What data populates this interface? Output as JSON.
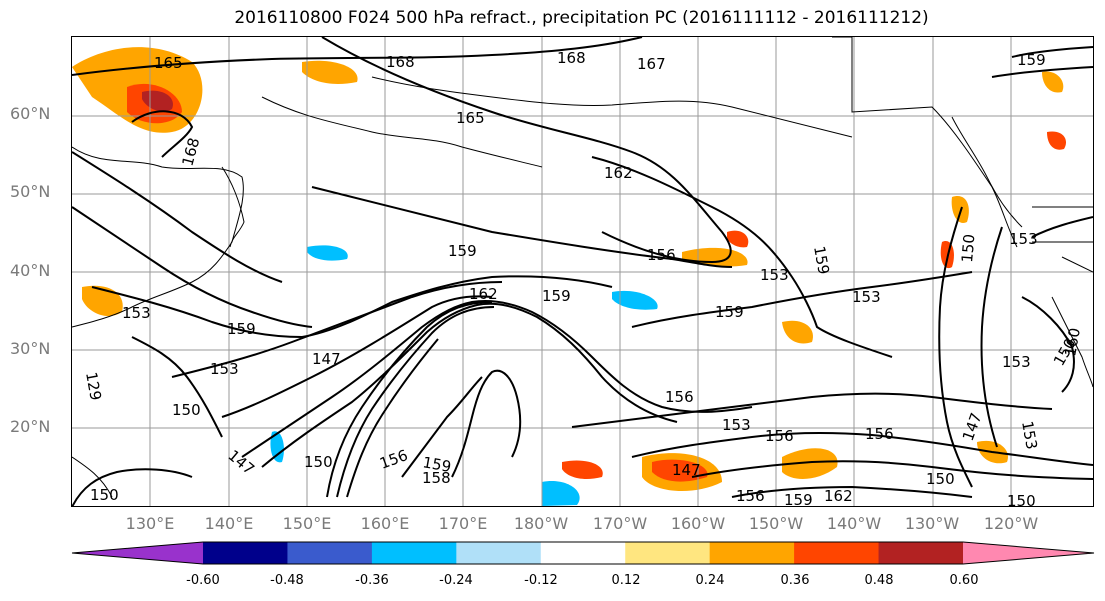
{
  "title": "2016110800 F024 500 hPa refract., precipitation PC (2016111112 - 2016111212)",
  "lat_labels": [
    "60°N",
    "50°N",
    "40°N",
    "30°N",
    "20°N"
  ],
  "lon_labels": [
    "130°E",
    "140°E",
    "150°E",
    "160°E",
    "170°E",
    "180°W",
    "170°W",
    "160°W",
    "150°W",
    "140°W",
    "130°W",
    "120°W"
  ],
  "colorbar": {
    "colors": [
      "#9932cc",
      "#00008b",
      "#3a5bcd",
      "#00bfff",
      "#b0e0f8",
      "#ffffff",
      "#ffe680",
      "#ffa500",
      "#ff4500",
      "#b22222",
      "#ff88b0"
    ],
    "tick_labels": [
      "-0.60",
      "-0.48",
      "-0.36",
      "-0.24",
      "-0.12",
      "0.12",
      "0.24",
      "0.36",
      "0.48",
      "0.60"
    ]
  },
  "contour_labels": [
    "165",
    "168",
    "168",
    "168",
    "167",
    "159",
    "165",
    "162",
    "159",
    "156",
    "153",
    "159",
    "153",
    "153",
    "150",
    "153",
    "159",
    "162",
    "159",
    "159",
    "153",
    "129",
    "147",
    "153",
    "150",
    "147",
    "156",
    "153",
    "156",
    "156",
    "147",
    "150",
    "147",
    "153",
    "150",
    "156",
    "159",
    "162",
    "156",
    "159",
    "158",
    "150",
    "150",
    "150",
    "160"
  ]
}
